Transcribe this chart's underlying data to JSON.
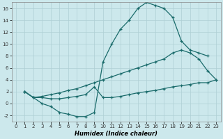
{
  "xlabel": "Humidex (Indice chaleur)",
  "ylabel": "",
  "bg_color": "#cce8ec",
  "line_color": "#1a6b6b",
  "grid_color": "#aecfd4",
  "xlim": [
    -0.5,
    23.5
  ],
  "ylim": [
    -3,
    17
  ],
  "xticks": [
    0,
    1,
    2,
    3,
    4,
    5,
    6,
    7,
    8,
    9,
    10,
    11,
    12,
    13,
    14,
    15,
    16,
    17,
    18,
    19,
    20,
    21,
    22,
    23
  ],
  "yticks": [
    -2,
    0,
    2,
    4,
    6,
    8,
    10,
    12,
    14,
    16
  ],
  "series": [
    {
      "x": [
        1,
        2,
        3,
        4,
        5,
        6,
        7,
        8,
        9,
        10,
        11,
        12,
        13,
        14,
        15,
        16,
        17,
        18,
        19,
        20,
        21,
        22
      ],
      "y": [
        2,
        1,
        0,
        -0.5,
        -1.5,
        -1.8,
        -2.2,
        -2.2,
        -1.5,
        7.0,
        10.0,
        12.5,
        14.0,
        16.0,
        17.0,
        16.5,
        16.0,
        14.5,
        10.5,
        9.0,
        8.5,
        8.0
      ]
    },
    {
      "x": [
        1,
        2,
        3,
        4,
        5,
        6,
        7,
        8,
        9,
        10,
        11,
        12,
        13,
        14,
        15,
        16,
        17,
        18,
        19,
        20,
        21,
        22,
        23
      ],
      "y": [
        2,
        1,
        1.2,
        1.5,
        1.8,
        2.2,
        2.5,
        3.0,
        3.5,
        4.0,
        4.5,
        5.0,
        5.5,
        6.0,
        6.5,
        7.0,
        7.5,
        8.5,
        9.0,
        8.5,
        7.5,
        5.5,
        4.0
      ]
    },
    {
      "x": [
        1,
        2,
        3,
        4,
        5,
        6,
        7,
        8,
        9,
        10,
        11,
        12,
        13,
        14,
        15,
        16,
        17,
        18,
        19,
        20,
        21,
        22,
        23
      ],
      "y": [
        2,
        1,
        1.0,
        0.8,
        0.8,
        1.0,
        1.2,
        1.5,
        2.8,
        1.0,
        1.0,
        1.2,
        1.5,
        1.8,
        2.0,
        2.2,
        2.5,
        2.8,
        3.0,
        3.2,
        3.5,
        3.5,
        4.0
      ]
    }
  ]
}
